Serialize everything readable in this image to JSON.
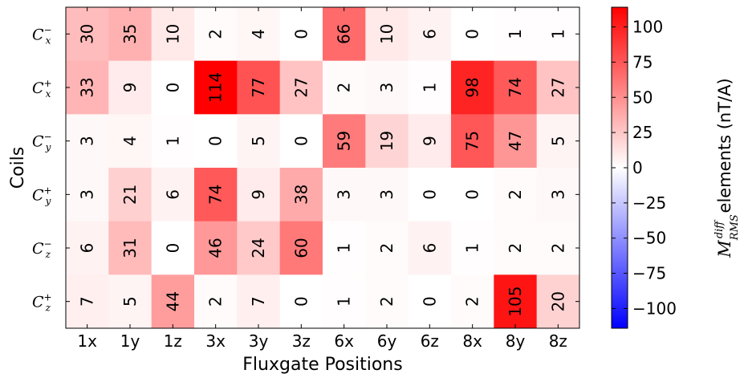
{
  "chart_data": {
    "type": "heatmap",
    "xlabel": "Fluxgate Positions",
    "ylabel": "Coils",
    "x_categories": [
      "1x",
      "1y",
      "1z",
      "3x",
      "3y",
      "3z",
      "6x",
      "6y",
      "6z",
      "8x",
      "8y",
      "8z"
    ],
    "y_categories": [
      {
        "base": "C",
        "sub": "x",
        "sup": "−"
      },
      {
        "base": "C",
        "sub": "x",
        "sup": "+"
      },
      {
        "base": "C",
        "sub": "y",
        "sup": "−"
      },
      {
        "base": "C",
        "sub": "y",
        "sup": "+"
      },
      {
        "base": "C",
        "sub": "z",
        "sup": "−"
      },
      {
        "base": "C",
        "sub": "z",
        "sup": "+"
      }
    ],
    "values": [
      [
        30,
        35,
        10,
        2,
        4,
        0,
        66,
        10,
        6,
        0,
        1,
        1
      ],
      [
        33,
        9,
        0,
        114,
        77,
        27,
        2,
        3,
        1,
        98,
        74,
        27
      ],
      [
        3,
        4,
        1,
        0,
        5,
        0,
        59,
        19,
        9,
        75,
        47,
        5
      ],
      [
        3,
        21,
        6,
        74,
        9,
        38,
        3,
        3,
        0,
        0,
        2,
        3
      ],
      [
        6,
        31,
        0,
        46,
        24,
        60,
        1,
        2,
        6,
        1,
        2,
        2
      ],
      [
        7,
        5,
        44,
        2,
        7,
        0,
        1,
        2,
        0,
        2,
        105,
        20
      ]
    ],
    "colorbar": {
      "range": [
        -114,
        114
      ],
      "ticks": [
        100,
        75,
        50,
        25,
        0,
        -25,
        -50,
        -75,
        -100
      ],
      "tick_labels": [
        "100",
        "75",
        "50",
        "25",
        "0",
        "−25",
        "−50",
        "−75",
        "−100"
      ],
      "label_math": {
        "base": "M",
        "sup": "diff",
        "sub": "RMS"
      },
      "label_text": "elements  (nT/A)",
      "colormap": "bwr"
    },
    "colors": {
      "low": "#0000ff",
      "mid": "#ffffff",
      "high": "#ff0000"
    }
  }
}
